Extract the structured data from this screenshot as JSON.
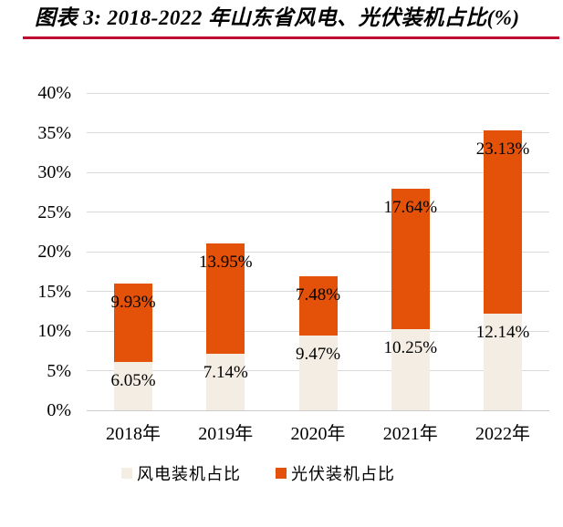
{
  "header": {
    "title": "图表 3: 2018-2022 年山东省风电、光伏装机占比(%)"
  },
  "colors": {
    "wind": "#F3EDE3",
    "solar": "#E4520A",
    "gridline": "#D9D9D9",
    "axis_line": "#CBCBCB",
    "title_rule": "#C00A32",
    "label_text": "#000000"
  },
  "legend": {
    "items": [
      {
        "label": "风电装机占比",
        "color_key": "wind"
      },
      {
        "label": "光伏装机占比",
        "color_key": "solar"
      }
    ]
  },
  "chart_data": {
    "type": "bar",
    "stacked": true,
    "title": "图表 3: 2018-2022 年山东省风电、光伏装机占比(%)",
    "categories": [
      "2018年",
      "2019年",
      "2020年",
      "2021年",
      "2022年"
    ],
    "series": [
      {
        "name": "风电装机占比",
        "values": [
          6.05,
          7.14,
          9.47,
          10.25,
          12.14
        ],
        "labels": [
          "6.05%",
          "7.14%",
          "9.47%",
          "10.25%",
          "12.14%"
        ]
      },
      {
        "name": "光伏装机占比",
        "values": [
          9.93,
          13.95,
          7.48,
          17.64,
          23.13
        ],
        "labels": [
          "9.93%",
          "13.95%",
          "7.48%",
          "17.64%",
          "23.13%"
        ]
      }
    ],
    "totals": [
      15.98,
      21.09,
      16.95,
      27.89,
      35.27
    ],
    "ylim": [
      0,
      40
    ],
    "ytick_step": 5,
    "yticks": [
      "0%",
      "5%",
      "10%",
      "15%",
      "20%",
      "25%",
      "30%",
      "35%",
      "40%"
    ],
    "grid": true,
    "legend_position": "bottom",
    "data_label_position": "inside-end"
  }
}
